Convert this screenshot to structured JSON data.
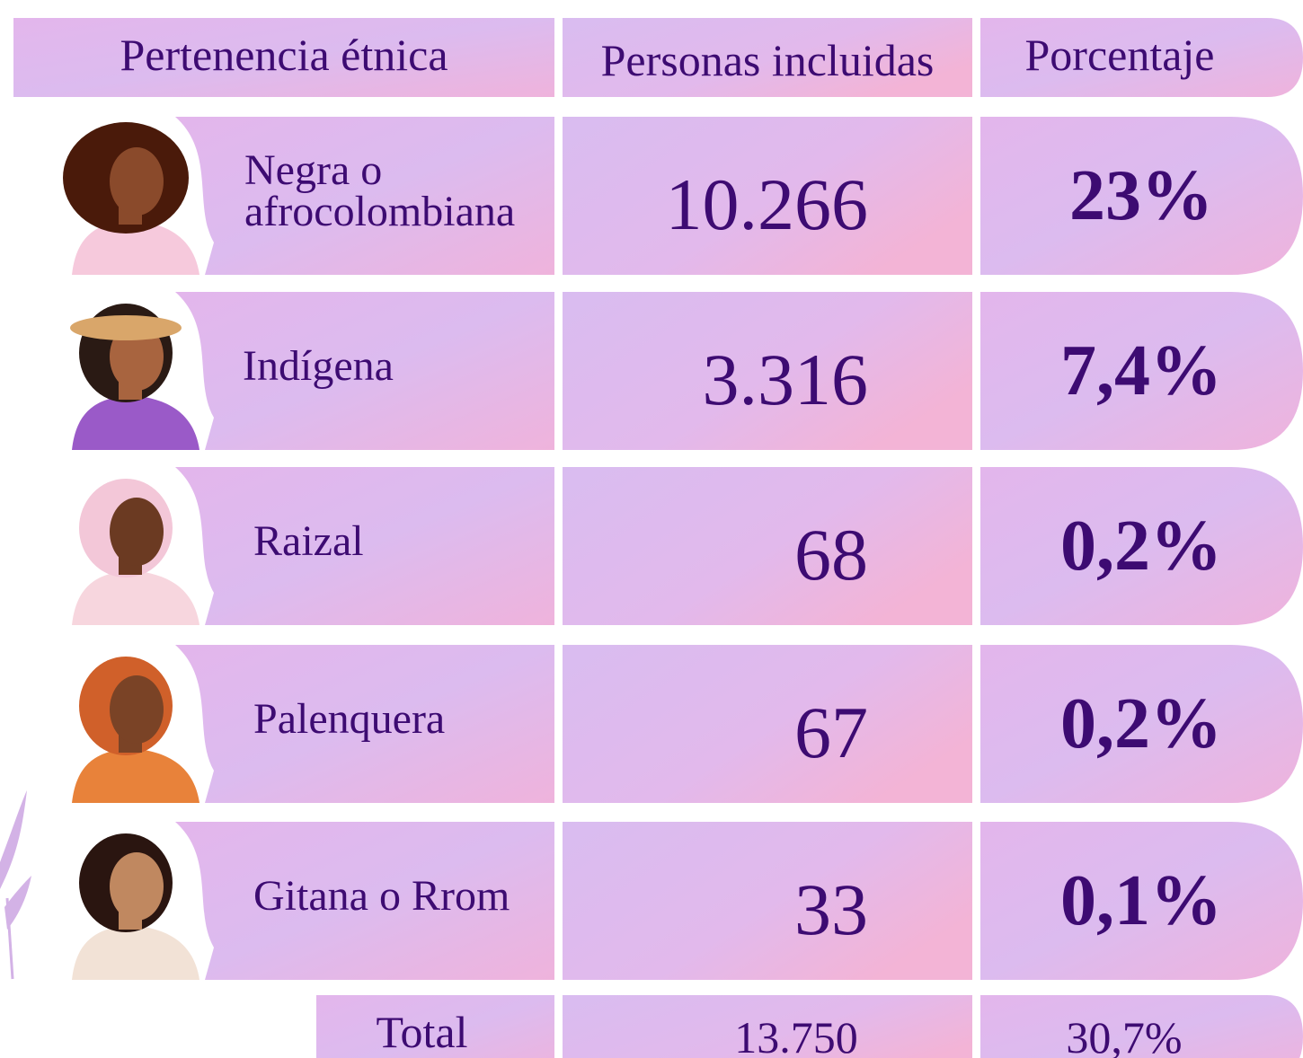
{
  "table": {
    "header": [
      "Pertenencia étnica",
      "Personas incluidas",
      "Porcentaje"
    ],
    "rows": [
      [
        "Negra o afrocolombiana",
        "10.266",
        "23%"
      ],
      [
        "Indígena",
        "3.316",
        "7,4%"
      ],
      [
        "Raizal",
        "68",
        "0,2%"
      ],
      [
        "Palenquera",
        "67",
        "0,2%"
      ],
      [
        "Gitana o Rrom",
        "33",
        "0,1%"
      ]
    ],
    "total": [
      "Total",
      "13.750",
      "30,7%"
    ]
  }
}
